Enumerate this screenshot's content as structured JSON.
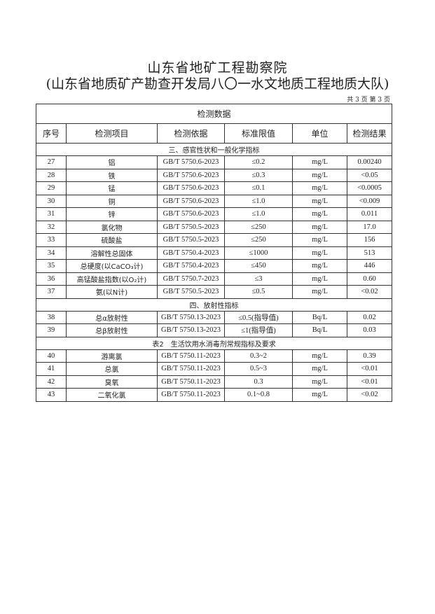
{
  "title_line1": "山东省地矿工程勘察院",
  "title_line2": "(山东省地质矿产勘查开发局八〇一水文地质工程地质大队)",
  "page_info": "共 3 页 第 3 页",
  "table_title": "检测数据",
  "headers": [
    "序号",
    "检测项目",
    "检测依据",
    "标准限值",
    "单位",
    "检测结果"
  ],
  "sections": [
    {
      "title": "三、感官性状和一般化学指标",
      "rows": [
        [
          "27",
          "铝",
          "GB/T 5750.6-2023",
          "≤0.2",
          "mg/L",
          "0.00240"
        ],
        [
          "28",
          "铁",
          "GB/T 5750.6-2023",
          "≤0.3",
          "mg/L",
          "<0.05"
        ],
        [
          "29",
          "锰",
          "GB/T 5750.6-2023",
          "≤0.1",
          "mg/L",
          "<0.0005"
        ],
        [
          "30",
          "铜",
          "GB/T 5750.6-2023",
          "≤1.0",
          "mg/L",
          "<0.009"
        ],
        [
          "31",
          "锌",
          "GB/T 5750.6-2023",
          "≤1.0",
          "mg/L",
          "0.011"
        ],
        [
          "32",
          "氯化物",
          "GB/T 5750.5-2023",
          "≤250",
          "mg/L",
          "17.0"
        ],
        [
          "33",
          "硫酸盐",
          "GB/T 5750.5-2023",
          "≤250",
          "mg/L",
          "156"
        ],
        [
          "34",
          "溶解性总固体",
          "GB/T 5750.4-2023",
          "≤1000",
          "mg/L",
          "513"
        ],
        [
          "35",
          "总硬度(以CaCO₃计)",
          "GB/T 5750.4-2023",
          "≤450",
          "mg/L",
          "446"
        ],
        [
          "36",
          "高锰酸盐指数(以O₂计)",
          "GB/T 5750.7-2023",
          "≤3",
          "mg/L",
          "0.60"
        ],
        [
          "37",
          "氨(以N计)",
          "GB/T 5750.5-2023",
          "≤0.5",
          "mg/L",
          "<0.02"
        ]
      ]
    },
    {
      "title": "四、放射性指标",
      "rows": [
        [
          "38",
          "总α放射性",
          "GB/T 5750.13-2023",
          "≤0.5(指导值)",
          "Bq/L",
          "0.02"
        ],
        [
          "39",
          "总β放射性",
          "GB/T 5750.13-2023",
          "≤1(指导值)",
          "Bq/L",
          "0.03"
        ]
      ]
    },
    {
      "title": "表2　生活饮用水消毒剂常规指标及要求",
      "rows": [
        [
          "40",
          "游离氯",
          "GB/T 5750.11-2023",
          "0.3~2",
          "mg/L",
          "0.39"
        ],
        [
          "41",
          "总氯",
          "GB/T 5750.11-2023",
          "0.5~3",
          "mg/L",
          "<0.01"
        ],
        [
          "42",
          "臭氧",
          "GB/T 5750.11-2023",
          "0.3",
          "mg/L",
          "<0.01"
        ],
        [
          "43",
          "二氧化氯",
          "GB/T 5750.11-2023",
          "0.1~0.8",
          "mg/L",
          "<0.02"
        ]
      ]
    }
  ]
}
